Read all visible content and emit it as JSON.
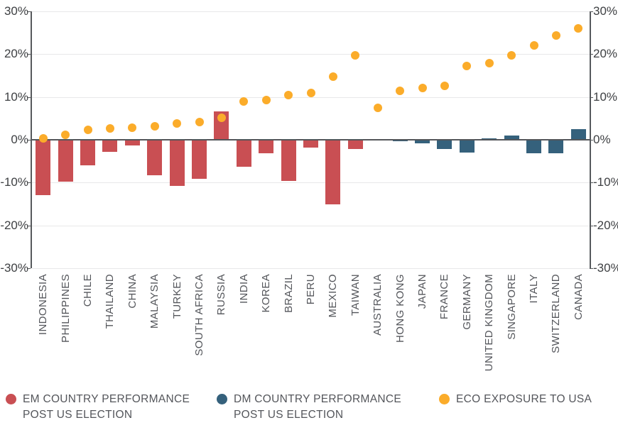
{
  "chart_data": {
    "type": "bar+scatter",
    "title": "",
    "xlabel": "",
    "ylabel": "",
    "ylim": [
      -30,
      30
    ],
    "ytick_values": [
      30,
      20,
      10,
      0,
      -10,
      -20,
      -30
    ],
    "ytick_labels": [
      "30%",
      "20%",
      "10%",
      "0%",
      "-10%",
      "-20%",
      "-30%"
    ],
    "grid": true,
    "legend_position": "bottom",
    "categories": [
      "INDONESIA",
      "PHILIPPINES",
      "CHILE",
      "THAILAND",
      "CHINA",
      "MALAYSIA",
      "TURKEY",
      "SOUTH AFRICA",
      "RUSSIA",
      "INDIA",
      "KOREA",
      "BRAZIL",
      "PERU",
      "MEXICO",
      "TAIWAN",
      "AUSTRALIA",
      "HONG KONG",
      "JAPAN",
      "FRANCE",
      "GERMANY",
      "UNITED KINGDOM",
      "SINGAPORE",
      "ITALY",
      "SWITZERLAND",
      "CANADA"
    ],
    "series": [
      {
        "name": "EM COUNTRY PERFORMANCE POST US ELECTION",
        "type": "bar",
        "color": "#c94f53",
        "values": [
          -13,
          -9.7,
          -6,
          -2.8,
          -1.4,
          -8.3,
          -10.8,
          -9.1,
          6.7,
          -6.3,
          -3.2,
          -9.6,
          -1.8,
          -15.1,
          -2.2,
          null,
          null,
          null,
          null,
          null,
          null,
          null,
          null,
          null,
          null
        ]
      },
      {
        "name": "DM COUNTRY PERFORMANCE POST US ELECTION",
        "type": "bar",
        "color": "#35617c",
        "values": [
          null,
          null,
          null,
          null,
          null,
          null,
          null,
          null,
          null,
          null,
          null,
          null,
          null,
          null,
          null,
          -0.2,
          -0.3,
          -0.8,
          -2.1,
          -3,
          0.4,
          1,
          -3.1,
          -3.1,
          2.5
        ]
      },
      {
        "name": "ECO EXPOSURE TO USA",
        "type": "scatter",
        "color": "#fbac2a",
        "values": [
          0.4,
          1.2,
          2.3,
          2.7,
          2.9,
          3.2,
          3.8,
          4.2,
          5.1,
          8.9,
          9.3,
          10.4,
          10.9,
          14.8,
          19.8,
          7.5,
          11.4,
          12.1,
          12.6,
          17.3,
          17.9,
          19.7,
          22,
          24.3,
          26
        ]
      }
    ]
  },
  "legend": {
    "items": [
      {
        "label_line1": "EM COUNTRY PERFORMANCE",
        "label_line2": "POST US ELECTION",
        "color": "#c94f53"
      },
      {
        "label_line1": "DM COUNTRY PERFORMANCE",
        "label_line2": "POST US ELECTION",
        "color": "#35617c"
      },
      {
        "label_line1": "ECO EXPOSURE TO USA",
        "label_line2": "",
        "color": "#fbac2a"
      }
    ]
  },
  "colors": {
    "em_bar": "#c94f53",
    "dm_bar": "#35617c",
    "eco_dot": "#fbac2a",
    "gridline": "#e8e8e9",
    "zero_line": "#53565a",
    "axis_text": "#3e4043",
    "category_text": "#54565b",
    "background": "#ffffff"
  }
}
